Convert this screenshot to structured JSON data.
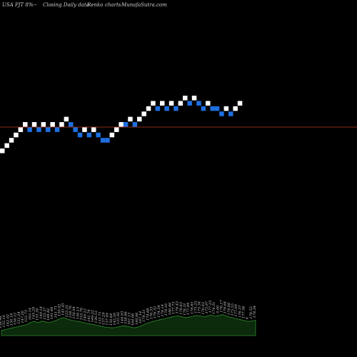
{
  "header": {
    "symbol": "USA PJT 8%--",
    "chart_kind": "Closing Daily data",
    "chart_style": "Renko",
    "word": "charts",
    "site": "MunafaSutra.com"
  },
  "colors": {
    "background": "#000000",
    "up_brick": "#ffffff",
    "down_brick": "#1e6fe0",
    "reference_line": "#8b2a1a",
    "volume_fill": "#0c2a0c",
    "volume_outline": "#2f8a2f"
  },
  "chart_data": {
    "type": "renko",
    "value_unit": "brick steps",
    "reference_level": 4.5,
    "bricks": [
      {
        "dir": "up",
        "level": 0
      },
      {
        "dir": "up",
        "level": 1
      },
      {
        "dir": "up",
        "level": 2
      },
      {
        "dir": "up",
        "level": 3
      },
      {
        "dir": "up",
        "level": 4
      },
      {
        "dir": "up",
        "level": 5
      },
      {
        "dir": "down",
        "level": 4
      },
      {
        "dir": "up",
        "level": 5
      },
      {
        "dir": "down",
        "level": 4
      },
      {
        "dir": "up",
        "level": 5
      },
      {
        "dir": "down",
        "level": 4
      },
      {
        "dir": "up",
        "level": 5
      },
      {
        "dir": "down",
        "level": 4
      },
      {
        "dir": "up",
        "level": 5
      },
      {
        "dir": "up",
        "level": 6
      },
      {
        "dir": "down",
        "level": 5
      },
      {
        "dir": "down",
        "level": 4
      },
      {
        "dir": "down",
        "level": 3
      },
      {
        "dir": "up",
        "level": 4
      },
      {
        "dir": "down",
        "level": 3
      },
      {
        "dir": "up",
        "level": 4
      },
      {
        "dir": "down",
        "level": 3
      },
      {
        "dir": "down",
        "level": 2
      },
      {
        "dir": "down",
        "level": 2
      },
      {
        "dir": "up",
        "level": 3
      },
      {
        "dir": "up",
        "level": 4
      },
      {
        "dir": "up",
        "level": 5
      },
      {
        "dir": "down",
        "level": 5
      },
      {
        "dir": "up",
        "level": 6
      },
      {
        "dir": "down",
        "level": 5
      },
      {
        "dir": "up",
        "level": 6
      },
      {
        "dir": "up",
        "level": 7
      },
      {
        "dir": "up",
        "level": 8
      },
      {
        "dir": "up",
        "level": 9
      },
      {
        "dir": "down",
        "level": 8
      },
      {
        "dir": "up",
        "level": 9
      },
      {
        "dir": "down",
        "level": 8
      },
      {
        "dir": "up",
        "level": 9
      },
      {
        "dir": "down",
        "level": 8
      },
      {
        "dir": "up",
        "level": 9
      },
      {
        "dir": "up",
        "level": 10
      },
      {
        "dir": "down",
        "level": 9
      },
      {
        "dir": "up",
        "level": 10
      },
      {
        "dir": "down",
        "level": 9
      },
      {
        "dir": "down",
        "level": 8
      },
      {
        "dir": "up",
        "level": 9
      },
      {
        "dir": "down",
        "level": 8
      },
      {
        "dir": "down",
        "level": 8
      },
      {
        "dir": "down",
        "level": 7
      },
      {
        "dir": "up",
        "level": 8
      },
      {
        "dir": "down",
        "level": 7
      },
      {
        "dir": "up",
        "level": 8
      },
      {
        "dir": "up",
        "level": 9
      }
    ],
    "volume_labels": [
      "158.98",
      "155.16",
      "142.02",
      "150.18",
      "156.12",
      "151.24",
      "147.26",
      "152.73",
      "165.14",
      "145.29",
      "155.34",
      "149.14",
      "153.37",
      "148.82",
      "141.46",
      "141.71",
      "150.02",
      "145.45",
      "153.31",
      "158.76",
      "156.94",
      "150.13",
      "153.76",
      "149.22",
      "141.74",
      "149.22",
      "136.53",
      "153.71",
      "137.29",
      "137.49",
      "150.84",
      "145.30",
      "135.92",
      "144.93",
      "158.86",
      "161.13",
      "164.06",
      "140.96",
      "167.14",
      "179.21",
      "174.68",
      "176.33",
      "176.52",
      "174.34",
      "174.14",
      "178.16",
      "180.86",
      "177.73",
      "178.43",
      "178.83",
      "178.31",
      "177.89",
      "178.85",
      "175.25",
      "175.34",
      "170.93",
      "175.97",
      "177.23",
      "174.31",
      "0.00",
      "176.17",
      "178.64",
      "174.66",
      "175.55",
      "177.09",
      "176.37",
      "177.36",
      "6",
      "178.52",
      "178.34"
    ],
    "volume": [
      0.12,
      0.14,
      0.16,
      0.18,
      0.2,
      0.22,
      0.24,
      0.26,
      0.31,
      0.33,
      0.3,
      0.34,
      0.32,
      0.3,
      0.33,
      0.36,
      0.4,
      0.42,
      0.38,
      0.36,
      0.34,
      0.33,
      0.31,
      0.29,
      0.27,
      0.26,
      0.24,
      0.22,
      0.2,
      0.19,
      0.18,
      0.19,
      0.21,
      0.23,
      0.22,
      0.2,
      0.18,
      0.2,
      0.23,
      0.27,
      0.3,
      0.33,
      0.35,
      0.37,
      0.39,
      0.41,
      0.43,
      0.45,
      0.46,
      0.44,
      0.42,
      0.43,
      0.45,
      0.47,
      0.46,
      0.44,
      0.46,
      0.48,
      0.45,
      0.47,
      0.49,
      0.46,
      0.43,
      0.41,
      0.39,
      0.37,
      0.35,
      0.33,
      0.34,
      0.36
    ]
  }
}
